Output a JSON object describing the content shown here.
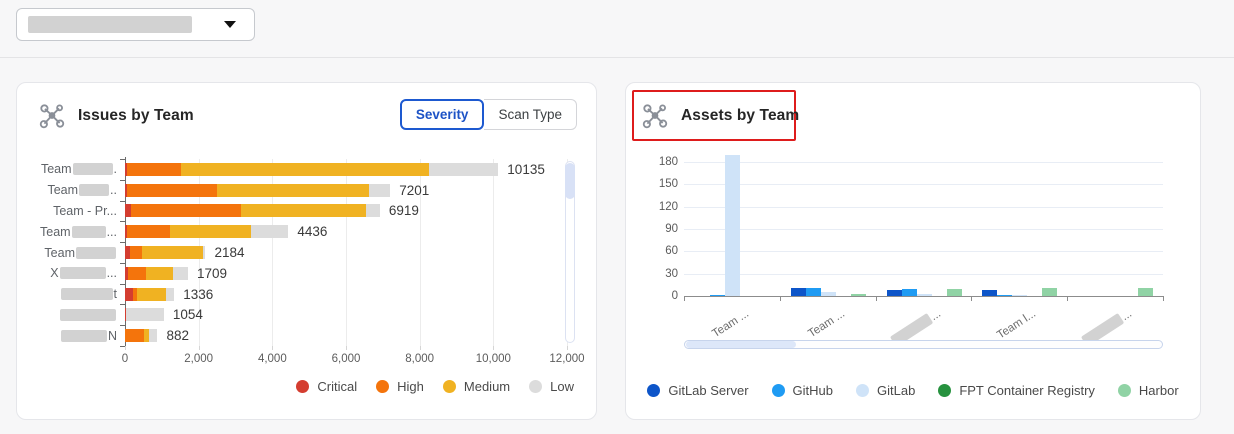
{
  "toolbar": {
    "dropdown": {
      "value_redacted": true,
      "caret_icon": "caret-down"
    }
  },
  "issues_card": {
    "title": "Issues by Team",
    "icon": "team-network-icon",
    "toggles": [
      {
        "label": "Severity",
        "active": true
      },
      {
        "label": "Scan Type",
        "active": false
      }
    ]
  },
  "assets_card": {
    "title": "Assets by Team",
    "icon": "team-network-icon",
    "highlight_color": "#de1c1c"
  },
  "chart_data": [
    {
      "type": "bar",
      "orientation": "horizontal",
      "stacked": true,
      "title": "Issues by Team",
      "active_view": "Severity",
      "categories": [
        {
          "prefix": "Team",
          "redacted": true,
          "redact_w": 40,
          "suffix": "."
        },
        {
          "prefix": "Team",
          "redacted": true,
          "redact_w": 30,
          "suffix": ".."
        },
        {
          "prefix": "Team - Pr...",
          "redacted": false,
          "redact_w": 0,
          "suffix": ""
        },
        {
          "prefix": "Team",
          "redacted": true,
          "redact_w": 34,
          "suffix": "..."
        },
        {
          "prefix": "Team",
          "redacted": true,
          "redact_w": 40,
          "suffix": ""
        },
        {
          "prefix": "X",
          "redacted": true,
          "redact_w": 46,
          "suffix": "..."
        },
        {
          "prefix": "",
          "redacted": true,
          "redact_w": 52,
          "suffix": "t"
        },
        {
          "prefix": "",
          "redacted": true,
          "redact_w": 56,
          "suffix": ""
        },
        {
          "prefix": "",
          "redacted": true,
          "redact_w": 46,
          "suffix": "N"
        }
      ],
      "series": [
        {
          "name": "Critical",
          "color": "#d43d30",
          "values": [
            60,
            55,
            150,
            50,
            140,
            80,
            230,
            24,
            0
          ]
        },
        {
          "name": "High",
          "color": "#f4740c",
          "values": [
            1450,
            2430,
            3000,
            1180,
            320,
            500,
            100,
            0,
            520
          ]
        },
        {
          "name": "Medium",
          "color": "#f0b222",
          "values": [
            6750,
            4140,
            3400,
            2190,
            1650,
            730,
            780,
            0,
            130
          ]
        },
        {
          "name": "Low",
          "color": "#dcdcdc",
          "values": [
            1875,
            576,
            369,
            1016,
            74,
            399,
            226,
            1030,
            232
          ]
        }
      ],
      "totals": [
        10135,
        7201,
        6919,
        4436,
        2184,
        1709,
        1336,
        1054,
        882
      ],
      "xticks": [
        "0",
        "2,000",
        "4,000",
        "6,000",
        "8,000",
        "10,000",
        "12,000"
      ],
      "xlim": [
        0,
        12000
      ],
      "grid": true,
      "legend_position": "bottom-right",
      "scrollbar": "vertical-right"
    },
    {
      "type": "bar",
      "orientation": "vertical",
      "grouped": true,
      "title": "Assets by Team",
      "categories": [
        {
          "prefix": "Team ...",
          "redacted": false,
          "redact_w": 0,
          "suffix": ""
        },
        {
          "prefix": "Team ...",
          "redacted": false,
          "redact_w": 0,
          "suffix": ""
        },
        {
          "prefix": "",
          "redacted": true,
          "redact_w": 44,
          "suffix": "..."
        },
        {
          "prefix": "Team l...",
          "redacted": false,
          "redact_w": 0,
          "suffix": ""
        },
        {
          "prefix": "",
          "redacted": true,
          "redact_w": 44,
          "suffix": "..."
        }
      ],
      "series": [
        {
          "name": "GitLab Server",
          "color": "#0d55c9",
          "values": [
            0,
            11,
            8,
            8,
            0
          ]
        },
        {
          "name": "GitHub",
          "color": "#1f9bf3",
          "values": [
            2,
            11,
            10,
            1,
            0
          ]
        },
        {
          "name": "GitLab",
          "color": "#cfe3f8",
          "values": [
            190,
            6,
            3,
            2,
            0
          ]
        },
        {
          "name": "FPT Container Registry",
          "color": "#27923f",
          "values": [
            0,
            0,
            0,
            0,
            0
          ]
        },
        {
          "name": "Harbor",
          "color": "#90d3a5",
          "values": [
            0,
            3,
            10,
            11,
            11
          ]
        }
      ],
      "yticks": [
        0,
        30,
        60,
        90,
        120,
        150,
        180
      ],
      "ylim": [
        0,
        180
      ],
      "note": "First GitLab bar exceeds the 180 axis max and is clipped at the plot top",
      "grid": true,
      "legend_position": "bottom-center",
      "scrollbar": "horizontal-bottom"
    }
  ]
}
